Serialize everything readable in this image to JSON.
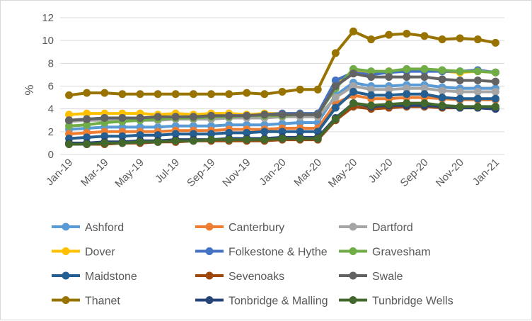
{
  "chart_data": {
    "type": "line",
    "title": "",
    "xlabel": "",
    "ylabel": "%",
    "ylim": [
      0,
      12
    ],
    "yticks": [
      0,
      2,
      4,
      6,
      8,
      10,
      12
    ],
    "grid": true,
    "legend_position": "bottom",
    "x": [
      "Jan-19",
      "Feb-19",
      "Mar-19",
      "Apr-19",
      "May-19",
      "Jun-19",
      "Jul-19",
      "Aug-19",
      "Sep-19",
      "Oct-19",
      "Nov-19",
      "Dec-19",
      "Jan-20",
      "Feb-20",
      "Mar-20",
      "Apr-20",
      "May-20",
      "Jun-20",
      "Jul-20",
      "Aug-20",
      "Sep-20",
      "Oct-20",
      "Nov-20",
      "Dec-20",
      "Jan-21"
    ],
    "xtick_labels": [
      "Jan-19",
      "Mar-19",
      "May-19",
      "Jul-19",
      "Sep-19",
      "Nov-19",
      "Jan-20",
      "Mar-20",
      "May-20",
      "Jul-20",
      "Sep-20",
      "Nov-20",
      "Jan-21"
    ],
    "series": [
      {
        "name": "Ashford",
        "color": "#5b9bd5",
        "values": [
          2.2,
          2.3,
          2.4,
          2.4,
          2.4,
          2.4,
          2.5,
          2.5,
          2.5,
          2.6,
          2.6,
          2.6,
          2.7,
          2.8,
          2.8,
          5.2,
          6.3,
          6.0,
          6.0,
          6.1,
          6.1,
          5.9,
          5.8,
          5.8,
          5.8
        ]
      },
      {
        "name": "Canterbury",
        "color": "#ed7d31",
        "values": [
          1.8,
          1.9,
          2.0,
          2.0,
          2.0,
          2.0,
          2.1,
          2.1,
          2.1,
          2.2,
          2.2,
          2.2,
          2.3,
          2.3,
          2.3,
          4.5,
          5.2,
          4.9,
          4.9,
          5.0,
          5.0,
          4.9,
          4.8,
          4.8,
          4.8
        ]
      },
      {
        "name": "Dartford",
        "color": "#a5a5a5",
        "values": [
          2.9,
          3.0,
          3.0,
          3.0,
          3.0,
          3.0,
          3.1,
          3.1,
          3.1,
          3.2,
          3.2,
          3.2,
          3.3,
          3.3,
          3.3,
          5.0,
          6.0,
          5.7,
          5.7,
          5.8,
          5.8,
          5.6,
          5.5,
          5.5,
          5.5
        ]
      },
      {
        "name": "Dover",
        "color": "#ffc000",
        "values": [
          3.5,
          3.6,
          3.6,
          3.6,
          3.6,
          3.5,
          3.6,
          3.5,
          3.6,
          3.6,
          3.5,
          3.6,
          3.6,
          3.6,
          3.6,
          6.1,
          7.3,
          7.2,
          7.3,
          7.4,
          7.4,
          7.3,
          7.2,
          7.3,
          7.2
        ]
      },
      {
        "name": "Folkestone & Hythe",
        "color": "#4472c4",
        "values": [
          3.0,
          3.1,
          3.2,
          3.2,
          3.2,
          3.2,
          3.3,
          3.3,
          3.3,
          3.4,
          3.4,
          3.5,
          3.6,
          3.6,
          3.6,
          6.5,
          7.2,
          7.0,
          7.2,
          7.3,
          7.3,
          7.3,
          7.3,
          7.4,
          7.2
        ]
      },
      {
        "name": "Gravesham",
        "color": "#70ad47",
        "values": [
          2.5,
          2.6,
          2.8,
          2.9,
          3.0,
          3.1,
          3.2,
          3.2,
          3.3,
          3.3,
          3.4,
          3.4,
          3.4,
          3.5,
          3.5,
          5.8,
          7.5,
          7.3,
          7.3,
          7.5,
          7.5,
          7.4,
          7.3,
          7.3,
          7.2
        ]
      },
      {
        "name": "Maidstone",
        "color": "#255e91",
        "values": [
          1.4,
          1.5,
          1.6,
          1.6,
          1.7,
          1.7,
          1.8,
          1.8,
          1.8,
          1.9,
          1.9,
          2.0,
          2.0,
          2.0,
          2.0,
          4.1,
          5.5,
          5.2,
          5.2,
          5.3,
          5.3,
          5.0,
          4.9,
          4.9,
          4.9
        ]
      },
      {
        "name": "Sevenoaks",
        "color": "#9e480e",
        "values": [
          0.9,
          0.9,
          0.9,
          1.0,
          1.0,
          1.1,
          1.1,
          1.2,
          1.2,
          1.2,
          1.2,
          1.2,
          1.3,
          1.3,
          1.3,
          3.0,
          4.2,
          4.0,
          4.1,
          4.2,
          4.2,
          4.1,
          4.1,
          4.1,
          4.0
        ]
      },
      {
        "name": "Swale",
        "color": "#636363",
        "values": [
          3.0,
          3.1,
          3.2,
          3.2,
          3.2,
          3.3,
          3.3,
          3.3,
          3.4,
          3.4,
          3.4,
          3.5,
          3.5,
          3.5,
          3.5,
          6.0,
          7.1,
          6.8,
          6.8,
          6.8,
          6.8,
          6.6,
          6.5,
          6.5,
          6.4
        ]
      },
      {
        "name": "Thanet",
        "color": "#997300",
        "values": [
          5.2,
          5.4,
          5.4,
          5.3,
          5.3,
          5.3,
          5.3,
          5.3,
          5.3,
          5.3,
          5.4,
          5.3,
          5.5,
          5.7,
          5.7,
          8.9,
          10.8,
          10.1,
          10.5,
          10.6,
          10.4,
          10.1,
          10.2,
          10.1,
          9.8
        ]
      },
      {
        "name": "Tonbridge & Malling",
        "color": "#264478",
        "values": [
          1.0,
          1.0,
          1.1,
          1.1,
          1.2,
          1.2,
          1.3,
          1.3,
          1.3,
          1.4,
          1.4,
          1.4,
          1.5,
          1.5,
          1.5,
          3.2,
          4.5,
          4.2,
          4.3,
          4.3,
          4.3,
          4.2,
          4.1,
          4.1,
          4.0
        ]
      },
      {
        "name": "Tunbridge Wells",
        "color": "#43682b",
        "values": [
          0.9,
          0.9,
          1.0,
          1.0,
          1.1,
          1.1,
          1.2,
          1.2,
          1.3,
          1.3,
          1.3,
          1.3,
          1.4,
          1.4,
          1.4,
          3.1,
          4.5,
          4.3,
          4.4,
          4.5,
          4.5,
          4.3,
          4.2,
          4.2,
          4.2
        ]
      }
    ]
  }
}
